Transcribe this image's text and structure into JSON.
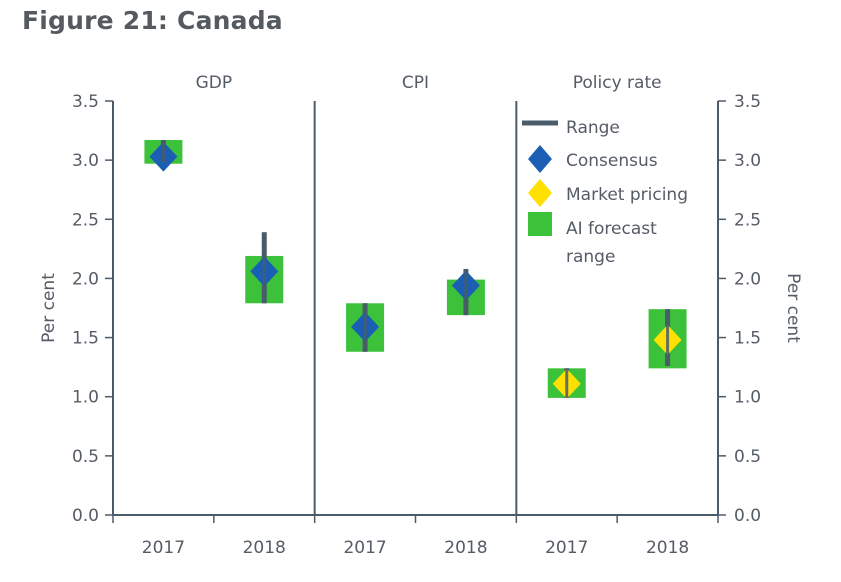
{
  "title": "Figure 21: Canada",
  "chart_data": {
    "type": "scatter",
    "title": "Figure 21: Canada",
    "ylabel_left": "Per cent",
    "ylabel_right": "Per cent",
    "ylim": [
      0.0,
      3.5
    ],
    "yticks": [
      "0.0",
      "0.5",
      "1.0",
      "1.5",
      "2.0",
      "2.5",
      "3.0",
      "3.5"
    ],
    "grid": false,
    "legend_position": "top-right",
    "legend": [
      {
        "key": "range",
        "label": "Range",
        "color": "#4a5c6a"
      },
      {
        "key": "consensus",
        "label": "Consensus",
        "color": "#1a5fb4"
      },
      {
        "key": "market",
        "label": "Market pricing",
        "color": "#ffe000"
      },
      {
        "key": "ai",
        "label": "AI forecast range",
        "line1": "AI forecast",
        "line2": "range",
        "color": "#3cc13b"
      }
    ],
    "panels": [
      {
        "name": "GDP",
        "points": [
          {
            "year": "2017",
            "range": [
              2.98,
              3.17
            ],
            "ai": [
              2.97,
              3.17
            ],
            "consensus": 3.03
          },
          {
            "year": "2018",
            "range": [
              1.79,
              2.39
            ],
            "ai": [
              1.79,
              2.19
            ],
            "consensus": 2.06
          }
        ]
      },
      {
        "name": "CPI",
        "points": [
          {
            "year": "2017",
            "range": [
              1.38,
              1.79
            ],
            "ai": [
              1.38,
              1.79
            ],
            "consensus": 1.59
          },
          {
            "year": "2018",
            "range": [
              1.69,
              2.08
            ],
            "ai": [
              1.69,
              1.99
            ],
            "consensus": 1.94
          }
        ]
      },
      {
        "name": "Policy rate",
        "points": [
          {
            "year": "2017",
            "range": [
              0.99,
              1.24
            ],
            "ai": [
              0.99,
              1.24
            ],
            "market": 1.11
          },
          {
            "year": "2018",
            "range": [
              1.26,
              1.74
            ],
            "ai": [
              1.24,
              1.74
            ],
            "market": 1.48
          }
        ]
      }
    ]
  }
}
